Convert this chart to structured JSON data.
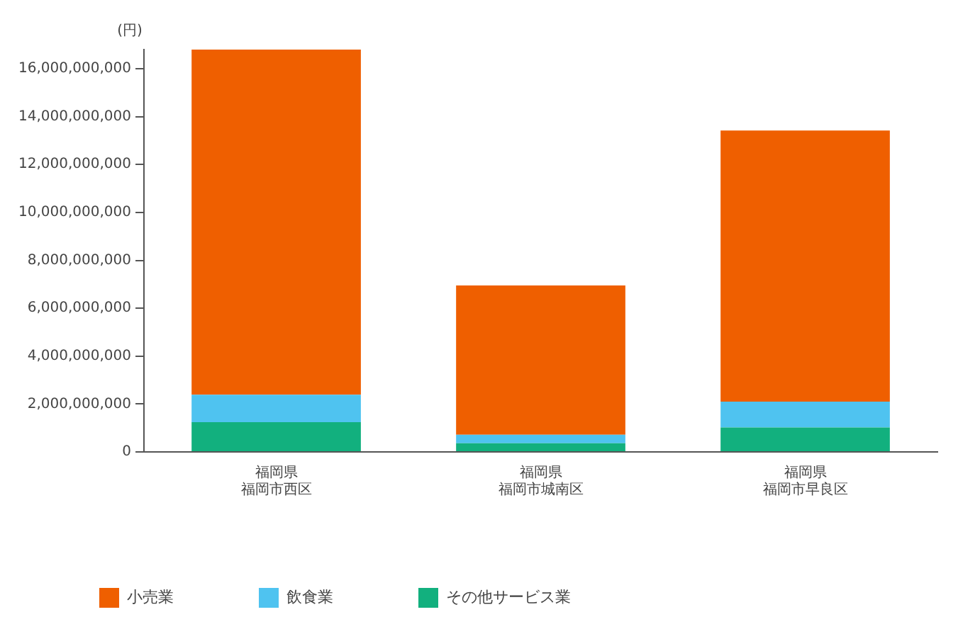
{
  "chart_data": {
    "type": "bar",
    "stacked": true,
    "ylabel": "(円)",
    "categories": [
      "福岡県福岡市西区",
      "福岡県福岡市城南区",
      "福岡県福岡市早良区"
    ],
    "series": [
      {
        "name": "その他サービス業",
        "color": "#12b07e",
        "values": [
          1240000000,
          360000000,
          1020000000
        ]
      },
      {
        "name": "飲食業",
        "color": "#4fc3f0",
        "values": [
          1150000000,
          360000000,
          1080000000
        ]
      },
      {
        "name": "小売業",
        "color": "#ef5f00",
        "values": [
          14410000000,
          6230000000,
          11320000000
        ]
      }
    ],
    "ylim": [
      0,
      16800000000
    ],
    "yticks": [
      0,
      {
        "value": 2000000000,
        "label": "2,000,000,000"
      },
      {
        "value": 4000000000,
        "label": "4,000,000,000"
      },
      {
        "value": 6000000000,
        "label": "6,000,000,000"
      },
      {
        "value": 8000000000,
        "label": "8,000,000,000"
      },
      {
        "value": 10000000000,
        "label": "10,000,000,000"
      },
      {
        "value": 12000000000,
        "label": "12,000,000,000"
      },
      {
        "value": 14000000000,
        "label": "14,000,000,000"
      },
      {
        "value": 16000000000,
        "label": "16,000,000,000"
      }
    ],
    "grid": false,
    "legend": "bottom left"
  }
}
